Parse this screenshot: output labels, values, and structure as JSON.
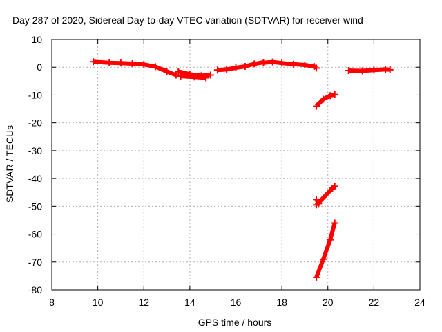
{
  "chart_data": {
    "type": "scatter",
    "title": "Day 287 of 2020, Sidereal Day-to-day VTEC variation (SDTVAR) for receiver wind",
    "xlabel": "GPS time / hours",
    "ylabel": "SDTVAR / TECUs",
    "xlim": [
      8,
      24
    ],
    "ylim": [
      -80,
      10
    ],
    "xticks": [
      8,
      10,
      12,
      14,
      16,
      18,
      20,
      22,
      24
    ],
    "yticks": [
      -80,
      -70,
      -60,
      -50,
      -40,
      -30,
      -20,
      -10,
      0,
      10
    ],
    "grid": true,
    "legend": "none",
    "colors": {
      "series": "#ff0000",
      "grid": "#b0b0b0",
      "axes": "#000000"
    },
    "series": [
      {
        "segments": [
          [
            [
              9.8,
              2.0
            ],
            [
              10.5,
              1.6
            ],
            [
              11.0,
              1.5
            ],
            [
              11.5,
              1.3
            ],
            [
              12.0,
              1.0
            ],
            [
              12.5,
              0.2
            ],
            [
              13.0,
              -1.5
            ],
            [
              13.4,
              -2.8
            ]
          ],
          [
            [
              13.5,
              -1.5
            ],
            [
              14.0,
              -2.5
            ],
            [
              14.5,
              -3.0
            ],
            [
              14.9,
              -2.8
            ]
          ],
          [
            [
              13.6,
              -3.2
            ],
            [
              14.2,
              -3.5
            ],
            [
              14.7,
              -3.8
            ]
          ],
          [
            [
              15.2,
              -1.0
            ],
            [
              15.6,
              -0.8
            ],
            [
              16.0,
              -0.2
            ],
            [
              16.4,
              0.3
            ],
            [
              16.8,
              1.2
            ],
            [
              17.2,
              1.8
            ]
          ],
          [
            [
              17.2,
              1.6
            ],
            [
              17.6,
              1.9
            ],
            [
              18.0,
              1.5
            ],
            [
              18.5,
              1.1
            ],
            [
              19.0,
              0.8
            ],
            [
              19.4,
              0.3
            ],
            [
              19.5,
              -0.3
            ]
          ],
          [
            [
              19.5,
              -14.0
            ],
            [
              19.8,
              -11.5
            ],
            [
              20.1,
              -10.2
            ],
            [
              20.3,
              -9.8
            ]
          ],
          [
            [
              19.5,
              -49.5
            ],
            [
              20.2,
              -43.5
            ],
            [
              20.3,
              -42.8
            ]
          ],
          [
            [
              19.5,
              -47.5
            ],
            [
              19.6,
              -49.0
            ]
          ],
          [
            [
              19.5,
              -75.5
            ],
            [
              19.8,
              -69.0
            ],
            [
              20.1,
              -62.0
            ],
            [
              20.3,
              -56.0
            ]
          ],
          [
            [
              20.9,
              -1.2
            ],
            [
              21.5,
              -1.3
            ],
            [
              22.0,
              -1.0
            ],
            [
              22.5,
              -0.8
            ],
            [
              22.7,
              -0.9
            ]
          ]
        ]
      }
    ]
  }
}
